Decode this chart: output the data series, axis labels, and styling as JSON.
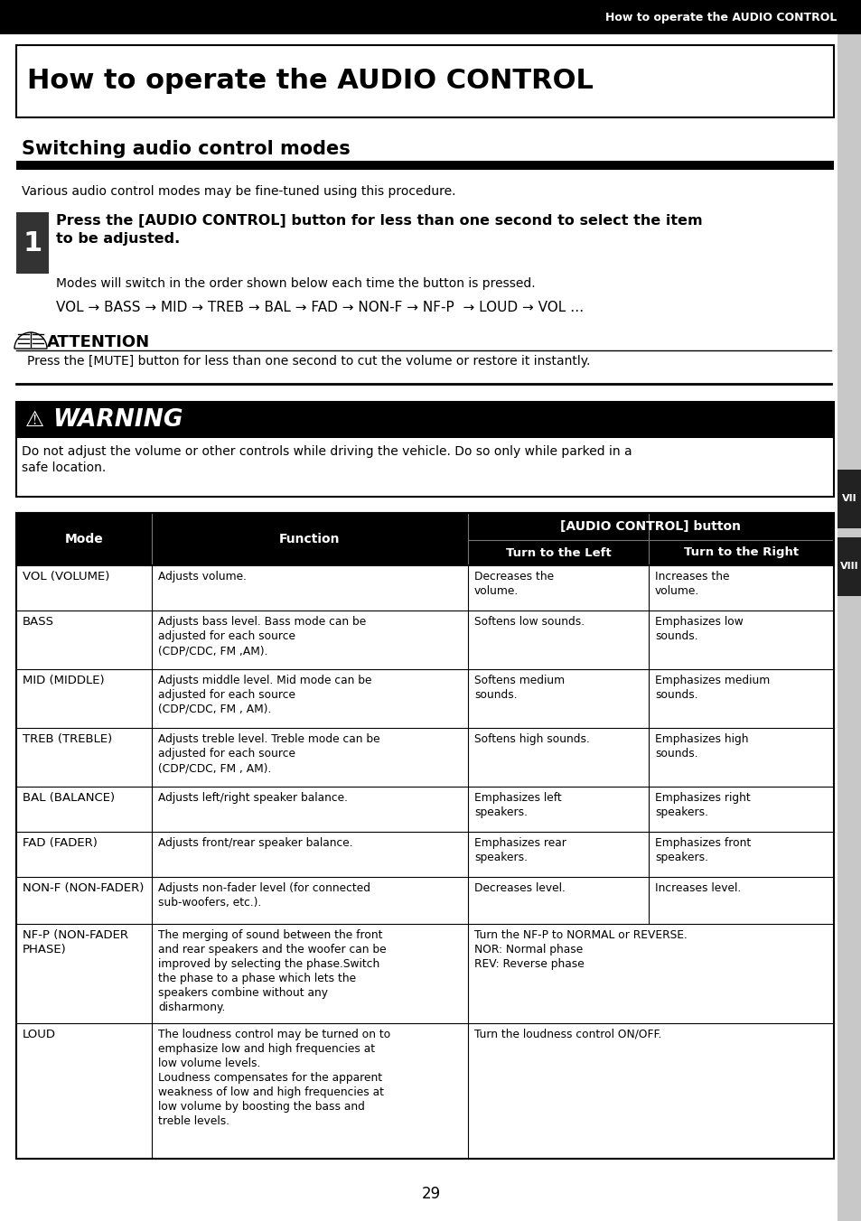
{
  "header_text": "How to operate the AUDIO CONTROL",
  "main_title": "How to operate the AUDIO CONTROL",
  "section_title": "Switching audio control modes",
  "intro_text": "Various audio control modes may be fine-tuned using this procedure.",
  "step1_text": "Press the [AUDIO CONTROL] button for less than one second to select the item to be adjusted.",
  "step1_sub": "Modes will switch in the order shown below each time the button is pressed.",
  "step1_seq": "VOL → BASS → MID → TREB → BAL → FAD → NON-F → NF-P  → LOUD → VOL …",
  "attention_title": "ATTENTION",
  "attention_text": "Press the [MUTE] button for less than one second to cut the volume or restore it instantly.",
  "warning_title": "WARNING",
  "warning_text_1": "Do not adjust the volume or other controls while driving the vehicle. Do so only while parked in a",
  "warning_text_2": "safe location.",
  "table_header_mode": "Mode",
  "table_header_function": "Function",
  "table_header_audio": "[AUDIO CONTROL] button",
  "table_header_left": "Turn to the Left",
  "table_header_right": "Turn to the Right",
  "table_rows": [
    {
      "mode": "VOL (VOLUME)",
      "function": "Adjusts volume.",
      "left": "Decreases the\nvolume.",
      "right": "Increases the\nvolume.",
      "merge_lr": false
    },
    {
      "mode": "BASS",
      "function": "Adjusts bass level. Bass mode can be\nadjusted for each source\n(CDP/CDC, FM ,AM).",
      "left": "Softens low sounds.",
      "right": "Emphasizes low\nsounds.",
      "merge_lr": false
    },
    {
      "mode": "MID (MIDDLE)",
      "function": "Adjusts middle level. Mid mode can be\nadjusted for each source\n(CDP/CDC, FM , AM).",
      "left": "Softens medium\nsounds.",
      "right": "Emphasizes medium\nsounds.",
      "merge_lr": false
    },
    {
      "mode": "TREB (TREBLE)",
      "function": "Adjusts treble level. Treble mode can be\nadjusted for each source\n(CDP/CDC, FM , AM).",
      "left": "Softens high sounds.",
      "right": "Emphasizes high\nsounds.",
      "merge_lr": false
    },
    {
      "mode": "BAL (BALANCE)",
      "function": "Adjusts left/right speaker balance.",
      "left": "Emphasizes left\nspeakers.",
      "right": "Emphasizes right\nspeakers.",
      "merge_lr": false
    },
    {
      "mode": "FAD (FADER)",
      "function": "Adjusts front/rear speaker balance.",
      "left": "Emphasizes rear\nspeakers.",
      "right": "Emphasizes front\nspeakers.",
      "merge_lr": false
    },
    {
      "mode": "NON-F (NON-FADER)",
      "function": "Adjusts non-fader level (for connected\nsub-woofers, etc.).",
      "left": "Decreases level.",
      "right": "Increases level.",
      "merge_lr": false
    },
    {
      "mode": "NF-P (NON-FADER\nPHASE)",
      "function": "The merging of sound between the front\nand rear speakers and the woofer can be\nimproved by selecting the phase.Switch\nthe phase to a phase which lets the\nspeakers combine without any\ndisharmony.",
      "left": "Turn the NF-P to NORMAL or REVERSE.\nNOR: Normal phase\nREV: Reverse phase",
      "right": "",
      "merge_lr": true
    },
    {
      "mode": "LOUD",
      "function": "The loudness control may be turned on to\nemphasize low and high frequencies at\nlow volume levels.\nLoudness compensates for the apparent\nweakness of low and high frequencies at\nlow volume by boosting the bass and\ntreble levels.",
      "left": "Turn the loudness control ON/OFF.",
      "right": "",
      "merge_lr": true
    }
  ],
  "page_number": "29",
  "tab_vii": "VII",
  "tab_viii": "VIII"
}
